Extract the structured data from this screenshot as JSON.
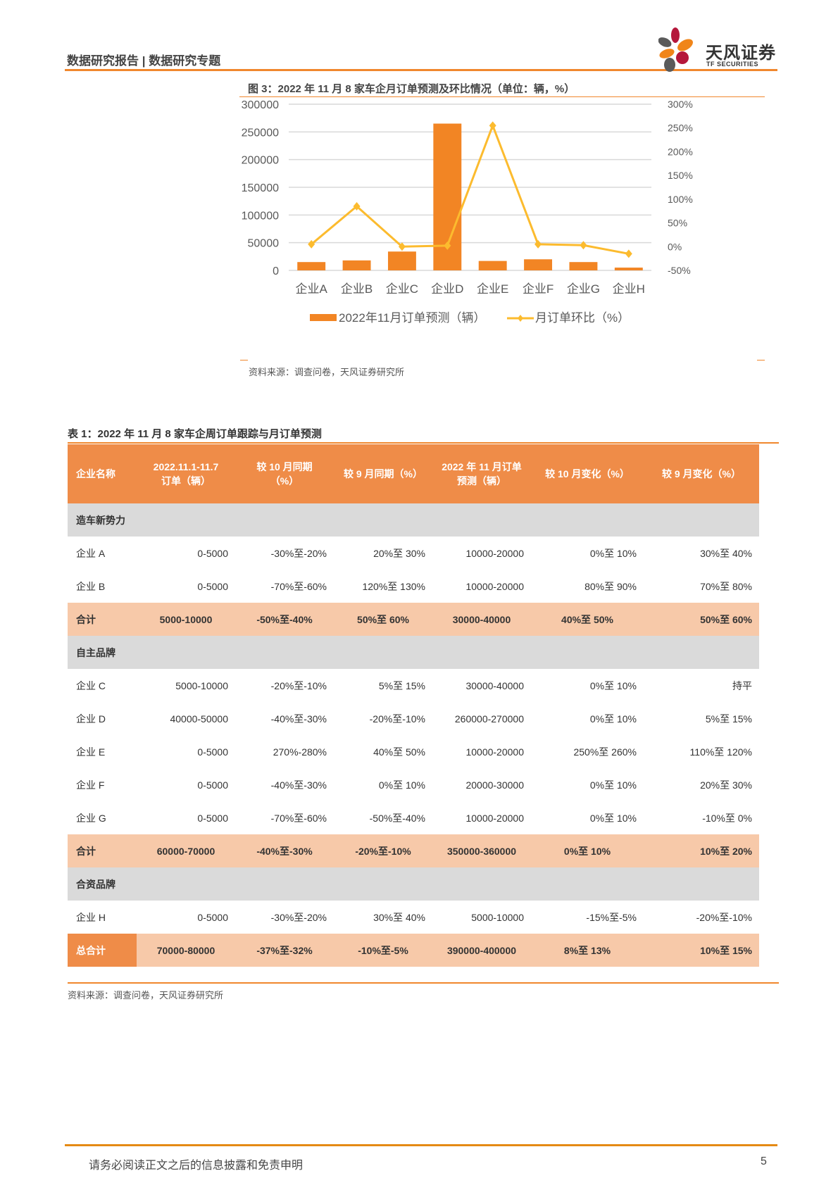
{
  "header": {
    "title": "数据研究报告 | 数据研究专题",
    "logo_cn": "天风证券",
    "logo_en": "TF SECURITIES",
    "logo_colors": {
      "red": "#b5173b",
      "orange": "#f08519",
      "gray": "#5a5a5a"
    }
  },
  "figure": {
    "title": "图 3：2022 年 11 月 8 家车企月订单预测及环比情况（单位：辆，%）",
    "source": "资料来源：调查问卷，天风证券研究所"
  },
  "chart_data": {
    "type": "bar+line",
    "title": "2022年11月8家车企月订单预测及环比情况（单位：辆，%）",
    "categories": [
      "企业A",
      "企业B",
      "企业C",
      "企业D",
      "企业E",
      "企业F",
      "企业G",
      "企业H"
    ],
    "series": [
      {
        "name": "2022年11月订单预测（辆）",
        "type": "bar",
        "axis": "left",
        "color": "#f28524",
        "values": [
          15000,
          18000,
          34000,
          265000,
          17000,
          20000,
          15000,
          5000
        ]
      },
      {
        "name": "月订单环比（%）",
        "type": "line",
        "axis": "right",
        "color": "#fcbb2e",
        "values": [
          5,
          85,
          0,
          2,
          255,
          5,
          3,
          -15
        ]
      }
    ],
    "left_axis": {
      "ticks": [
        "0",
        "50000",
        "100000",
        "150000",
        "200000",
        "250000",
        "300000"
      ],
      "range": [
        0,
        300000
      ]
    },
    "right_axis": {
      "ticks": [
        "-50%",
        "0%",
        "50%",
        "100%",
        "150%",
        "200%",
        "250%",
        "300%"
      ],
      "range": [
        -50,
        300
      ]
    },
    "grid": true,
    "legend_position": "bottom",
    "legend": [
      "2022年11月订单预测（辆）",
      "月订单环比（%）"
    ]
  },
  "table": {
    "title": "表 1：2022 年 11 月 8 家车企周订单跟踪与月订单预测",
    "headers": [
      "企业名称",
      "2022.11.1-11.7\n订单（辆）",
      "较 10 月同期\n（%）",
      "较 9 月同期（%）",
      "2022 年 11 月订单\n预测（辆）",
      "较 10 月变化（%）",
      "较 9 月变化（%）"
    ],
    "header_lines": [
      [
        "企业名称"
      ],
      [
        "2022.11.1-11.7",
        "订单（辆）"
      ],
      [
        "较 10 月同期",
        "（%）"
      ],
      [
        "较 9 月同期（%）"
      ],
      [
        "2022 年 11 月订单",
        "预测（辆）"
      ],
      [
        "较 10 月变化（%）"
      ],
      [
        "较 9 月变化（%）"
      ]
    ],
    "rows": [
      {
        "type": "section",
        "cells": [
          "造车新势力"
        ]
      },
      {
        "type": "data",
        "cells": [
          "企业 A",
          "0-5000",
          "-30%至-20%",
          "20%至 30%",
          "10000-20000",
          "0%至 10%",
          "30%至 40%"
        ]
      },
      {
        "type": "data",
        "cells": [
          "企业 B",
          "0-5000",
          "-70%至-60%",
          "120%至 130%",
          "10000-20000",
          "80%至 90%",
          "70%至 80%"
        ]
      },
      {
        "type": "subtotal",
        "cells": [
          "合计",
          "5000-10000",
          "-50%至-40%",
          "50%至 60%",
          "30000-40000",
          "40%至 50%",
          "50%至 60%"
        ]
      },
      {
        "type": "section",
        "cells": [
          "自主品牌"
        ]
      },
      {
        "type": "data",
        "cells": [
          "企业 C",
          "5000-10000",
          "-20%至-10%",
          "5%至 15%",
          "30000-40000",
          "0%至 10%",
          "持平"
        ]
      },
      {
        "type": "data",
        "cells": [
          "企业 D",
          "40000-50000",
          "-40%至-30%",
          "-20%至-10%",
          "260000-270000",
          "0%至 10%",
          "5%至 15%"
        ]
      },
      {
        "type": "data",
        "cells": [
          "企业 E",
          "0-5000",
          "270%-280%",
          "40%至 50%",
          "10000-20000",
          "250%至 260%",
          "110%至 120%"
        ]
      },
      {
        "type": "data",
        "cells": [
          "企业 F",
          "0-5000",
          "-40%至-30%",
          "0%至 10%",
          "20000-30000",
          "0%至 10%",
          "20%至 30%"
        ]
      },
      {
        "type": "data",
        "cells": [
          "企业 G",
          "0-5000",
          "-70%至-60%",
          "-50%至-40%",
          "10000-20000",
          "0%至 10%",
          "-10%至 0%"
        ]
      },
      {
        "type": "subtotal",
        "cells": [
          "合计",
          "60000-70000",
          "-40%至-30%",
          "-20%至-10%",
          "350000-360000",
          "0%至 10%",
          "10%至 20%"
        ]
      },
      {
        "type": "section",
        "cells": [
          "合资品牌"
        ]
      },
      {
        "type": "data",
        "cells": [
          "企业 H",
          "0-5000",
          "-30%至-20%",
          "30%至 40%",
          "5000-10000",
          "-15%至-5%",
          "-20%至-10%"
        ]
      },
      {
        "type": "grandtotal",
        "cells": [
          "总合计",
          "70000-80000",
          "-37%至-32%",
          "-10%至-5%",
          "390000-400000",
          "8%至 13%",
          "10%至 15%"
        ]
      }
    ],
    "source": "资料来源：调查问卷，天风证券研究所"
  },
  "footer": {
    "disclaimer": "请务必阅读正文之后的信息披露和免责申明",
    "page_number": "5"
  }
}
